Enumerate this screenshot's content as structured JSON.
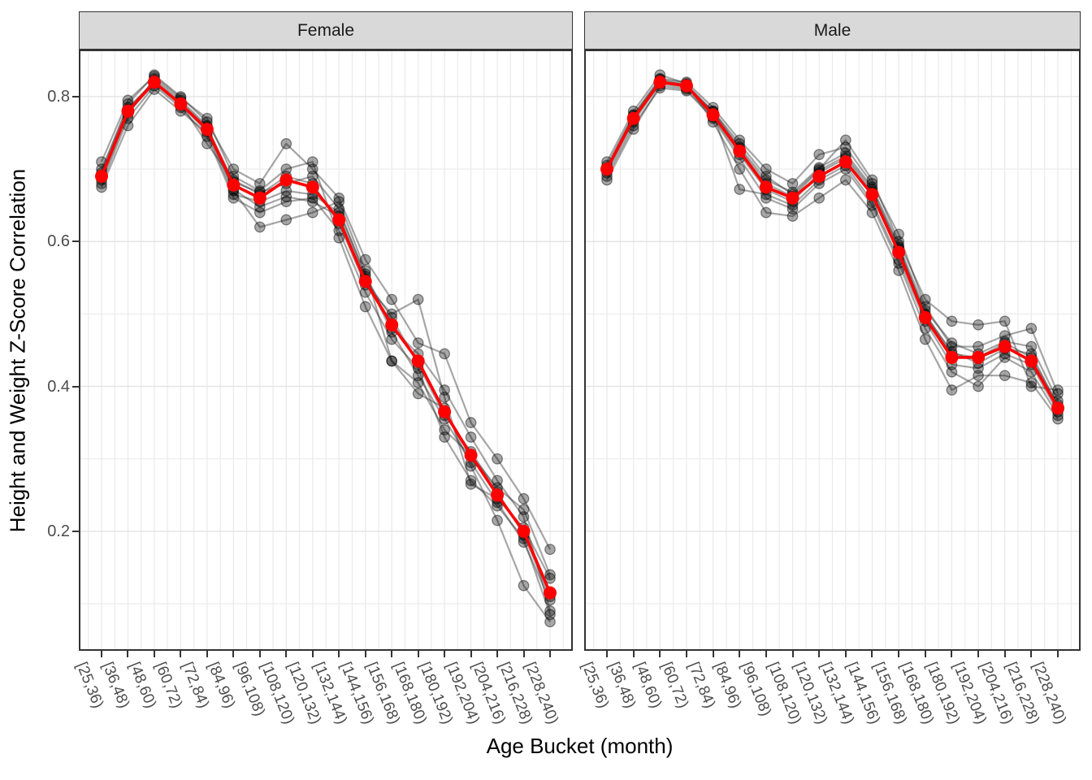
{
  "chart_data": {
    "type": "line",
    "title": "",
    "xlabel": "Age Bucket (month)",
    "ylabel": "Height and Weight Z-Score Correlation",
    "legend": "none",
    "grid": "major+minor",
    "categories": [
      "[25,36)",
      "[36,48)",
      "[48,60)",
      "[60,72)",
      "[72,84)",
      "[84,96)",
      "[96,108)",
      "[108,120)",
      "[120,132)",
      "[132,144)",
      "[144,156)",
      "[156,168)",
      "[168,180)",
      "[180,192)",
      "[192,204)",
      "[204,216)",
      "[216,228)",
      "[228,240)"
    ],
    "y_tick_values": [
      0.8,
      0.6,
      0.4,
      0.2
    ],
    "y_tick_labels": [
      "0.8",
      "0.6",
      "0.4",
      "0.2"
    ],
    "y_minor_ticks": [
      0.7,
      0.5,
      0.3,
      0.1
    ],
    "ylim": [
      0.035,
      0.865
    ],
    "facets": [
      {
        "label": "Female",
        "mean": [
          0.69,
          0.78,
          0.82,
          0.79,
          0.755,
          0.678,
          0.66,
          0.685,
          0.675,
          0.63,
          0.545,
          0.485,
          0.435,
          0.365,
          0.305,
          0.25,
          0.2,
          0.115
        ],
        "series": [
          [
            0.68,
            0.77,
            0.815,
            0.785,
            0.745,
            0.66,
            0.64,
            0.655,
            0.66,
            0.615,
            0.53,
            0.465,
            0.425,
            0.33,
            0.27,
            0.235,
            0.19,
            0.085
          ],
          [
            0.685,
            0.775,
            0.825,
            0.795,
            0.76,
            0.67,
            0.62,
            0.63,
            0.64,
            0.655,
            0.56,
            0.435,
            0.39,
            0.37,
            0.29,
            0.215,
            0.125,
            0.075
          ],
          [
            0.695,
            0.79,
            0.83,
            0.8,
            0.765,
            0.7,
            0.68,
            0.735,
            0.7,
            0.66,
            0.575,
            0.52,
            0.46,
            0.445,
            0.35,
            0.3,
            0.245,
            0.175
          ],
          [
            0.7,
            0.785,
            0.82,
            0.79,
            0.735,
            0.685,
            0.665,
            0.69,
            0.68,
            0.625,
            0.54,
            0.5,
            0.52,
            0.385,
            0.265,
            0.245,
            0.205,
            0.135
          ],
          [
            0.675,
            0.76,
            0.81,
            0.78,
            0.75,
            0.665,
            0.655,
            0.67,
            0.665,
            0.64,
            0.555,
            0.48,
            0.445,
            0.395,
            0.33,
            0.27,
            0.22,
            0.09
          ],
          [
            0.71,
            0.795,
            0.828,
            0.798,
            0.77,
            0.69,
            0.67,
            0.7,
            0.71,
            0.605,
            0.51,
            0.435,
            0.405,
            0.34,
            0.305,
            0.26,
            0.23,
            0.14
          ],
          [
            0.688,
            0.778,
            0.818,
            0.788,
            0.752,
            0.672,
            0.648,
            0.662,
            0.655,
            0.635,
            0.548,
            0.495,
            0.43,
            0.36,
            0.31,
            0.255,
            0.195,
            0.11
          ],
          [
            0.692,
            0.782,
            0.822,
            0.792,
            0.758,
            0.682,
            0.668,
            0.68,
            0.69,
            0.645,
            0.552,
            0.475,
            0.415,
            0.355,
            0.295,
            0.24,
            0.185,
            0.105
          ]
        ]
      },
      {
        "label": "Male",
        "mean": [
          0.7,
          0.77,
          0.82,
          0.815,
          0.775,
          0.725,
          0.675,
          0.66,
          0.69,
          0.71,
          0.665,
          0.585,
          0.495,
          0.44,
          0.44,
          0.455,
          0.435,
          0.37
        ],
        "series": [
          [
            0.69,
            0.76,
            0.812,
            0.808,
            0.77,
            0.715,
            0.66,
            0.645,
            0.68,
            0.7,
            0.65,
            0.57,
            0.48,
            0.42,
            0.4,
            0.44,
            0.42,
            0.36
          ],
          [
            0.695,
            0.765,
            0.818,
            0.812,
            0.78,
            0.735,
            0.69,
            0.665,
            0.7,
            0.74,
            0.685,
            0.6,
            0.52,
            0.49,
            0.485,
            0.49,
            0.4,
            0.395
          ],
          [
            0.705,
            0.775,
            0.825,
            0.82,
            0.785,
            0.74,
            0.7,
            0.68,
            0.72,
            0.73,
            0.68,
            0.61,
            0.51,
            0.455,
            0.455,
            0.47,
            0.48,
            0.39
          ],
          [
            0.71,
            0.78,
            0.83,
            0.818,
            0.765,
            0.7,
            0.64,
            0.635,
            0.66,
            0.685,
            0.64,
            0.56,
            0.465,
            0.395,
            0.415,
            0.415,
            0.405,
            0.355
          ],
          [
            0.685,
            0.755,
            0.815,
            0.81,
            0.772,
            0.72,
            0.672,
            0.655,
            0.695,
            0.715,
            0.668,
            0.59,
            0.5,
            0.445,
            0.44,
            0.46,
            0.44,
            0.375
          ],
          [
            0.7,
            0.772,
            0.822,
            0.816,
            0.778,
            0.728,
            0.68,
            0.662,
            0.698,
            0.718,
            0.672,
            0.592,
            0.498,
            0.448,
            0.432,
            0.452,
            0.445,
            0.372
          ],
          [
            0.698,
            0.768,
            0.82,
            0.814,
            0.776,
            0.672,
            0.665,
            0.65,
            0.685,
            0.705,
            0.655,
            0.575,
            0.49,
            0.43,
            0.425,
            0.445,
            0.43,
            0.365
          ],
          [
            0.702,
            0.774,
            0.824,
            0.817,
            0.78,
            0.73,
            0.685,
            0.668,
            0.702,
            0.722,
            0.675,
            0.595,
            0.505,
            0.46,
            0.445,
            0.462,
            0.455,
            0.38
          ]
        ]
      }
    ],
    "colors": {
      "mean": "#ff0000",
      "series": "#2b2b2b",
      "strip_fill": "#d9d9d9",
      "panel_border": "#333333",
      "grid": "#ebebeb",
      "grid_major_h": "#e3e3e3",
      "tick_label": "#4d4d4d",
      "title_text": "#000000"
    }
  }
}
